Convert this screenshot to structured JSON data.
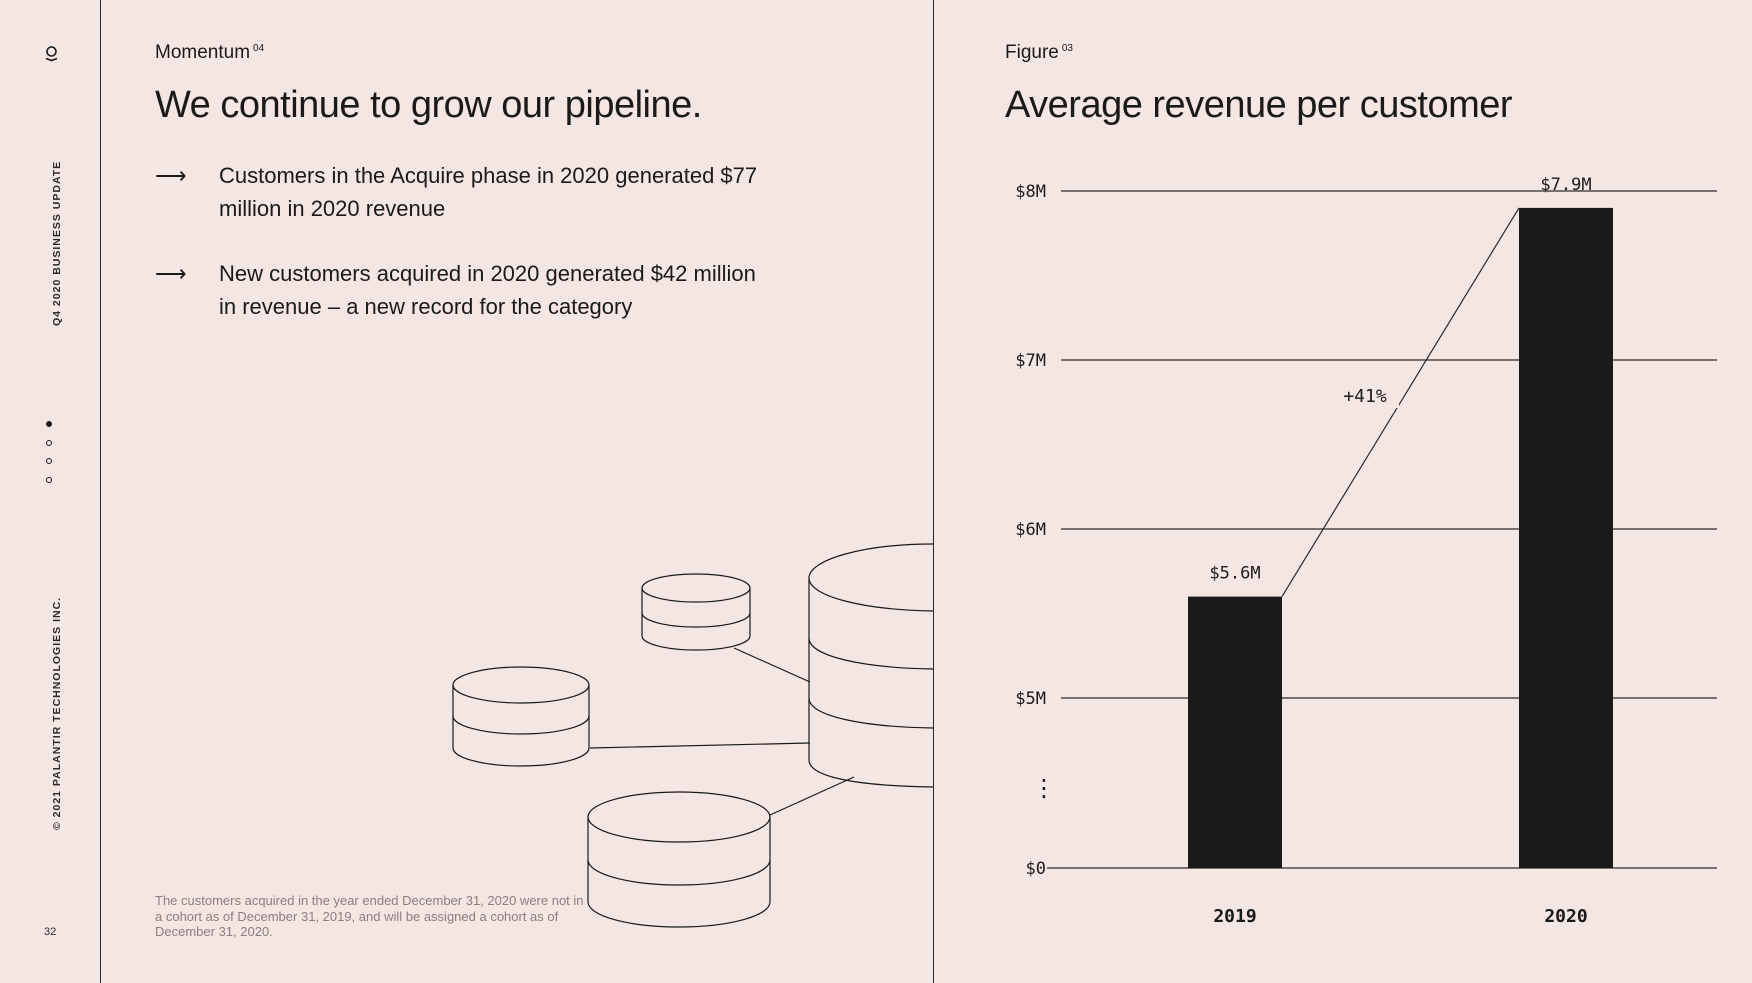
{
  "sidebar": {
    "logo_icon": "palantir-logo-icon",
    "report_label": "Q4 2020 BUSINESS UPDATE",
    "copyright": "© 2021 PALANTIR TECHNOLOGIES INC.",
    "page_number": "32",
    "pagination": {
      "total": 4,
      "active": 1
    }
  },
  "left": {
    "eyebrow": "Momentum",
    "eyebrow_sup": "04",
    "headline": "We continue to grow our pipeline.",
    "bullets": [
      {
        "arrow": "⟶",
        "text": "Customers in the Acquire phase in 2020 generated $77 million in 2020 revenue"
      },
      {
        "arrow": "⟶",
        "text": "New customers acquired in 2020 generated $42 million in revenue – a new record for the category"
      }
    ],
    "footnote": "The customers acquired in the year ended December 31, 2020 were not in a cohort as of December 31, 2019, and will be assigned a cohort as of December 31, 2020.",
    "illustration_icon": "database-cylinders-icon"
  },
  "right": {
    "eyebrow": "Figure",
    "eyebrow_sup": "03"
  },
  "chart_data": {
    "type": "bar",
    "title": "Average revenue per customer",
    "categories": [
      "2019",
      "2020"
    ],
    "values": [
      5.6,
      7.9
    ],
    "data_labels": [
      "$5.6M",
      "$7.9M"
    ],
    "yticks": [
      {
        "value": 0,
        "label": "$0"
      },
      {
        "value": 5,
        "label": "$5M"
      },
      {
        "value": 6,
        "label": "$6M"
      },
      {
        "value": 7,
        "label": "$7M"
      },
      {
        "value": 8,
        "label": "$8M"
      }
    ],
    "axis_break_symbol": "⋮",
    "ylim": [
      0,
      8
    ],
    "axis_break": [
      0,
      5
    ],
    "annotation": "+41%",
    "grid": true,
    "colors": {
      "bar": "#1a1a1a",
      "background": "#f4e6e3"
    }
  }
}
